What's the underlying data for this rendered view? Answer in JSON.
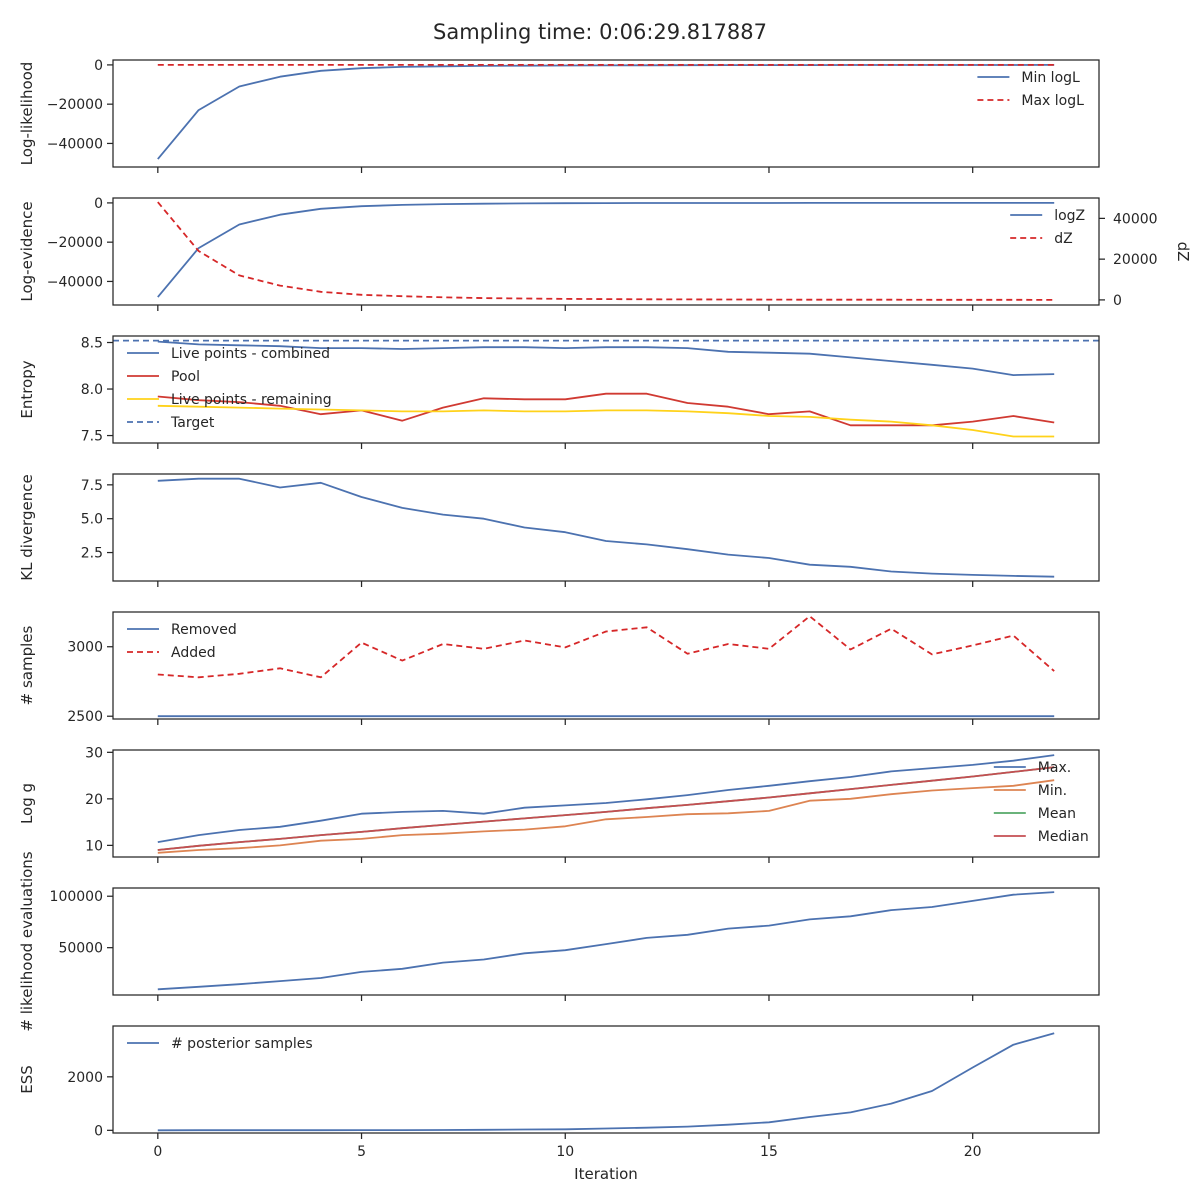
{
  "figure": {
    "title": "Sampling time: 0:06:29.817887"
  },
  "colors": {
    "blue": "#4c72b0",
    "red": "#c44e52",
    "redDash": "#d62728",
    "crimson": "#d03a32",
    "orange": "#dd8452",
    "green": "#55a868",
    "gold": "#ffd21a",
    "axis": "#262626"
  },
  "chart_data": [
    {
      "id": "loglike",
      "type": "line",
      "ylabel": "Log-likelihood",
      "xlabel": "",
      "ylim": [
        -52000,
        2500
      ],
      "yticks": [
        0,
        -20000,
        -40000
      ],
      "ytick_labels": [
        "0",
        "−20000",
        "−40000"
      ],
      "legend": "top-right",
      "series": [
        {
          "name": "Min logL",
          "color": "#4c72b0",
          "dash": false,
          "values": [
            -48000,
            -23000,
            -11000,
            -6000,
            -3000,
            -1700,
            -1000,
            -700,
            -500,
            -400,
            -300,
            -250,
            -200,
            -150,
            -120,
            -100,
            -80,
            -70,
            -60,
            -50,
            -40,
            -30,
            -20
          ]
        },
        {
          "name": "Max logL",
          "color": "#d62728",
          "dash": true,
          "values": [
            0,
            0,
            0,
            0,
            0,
            0,
            0,
            0,
            0,
            0,
            0,
            0,
            0,
            0,
            0,
            0,
            0,
            0,
            0,
            0,
            0,
            0,
            0
          ]
        }
      ]
    },
    {
      "id": "logevidence",
      "type": "line",
      "ylabel": "Log-evidence",
      "xlabel": "",
      "ylim": [
        -52000,
        2500
      ],
      "yticks": [
        0,
        -20000,
        -40000
      ],
      "ytick_labels": [
        "0",
        "−20000",
        "−40000"
      ],
      "y2label": "dZ",
      "y2lim": [
        -2500,
        50000
      ],
      "y2ticks": [
        0,
        20000,
        40000
      ],
      "y2tick_labels": [
        "0",
        "20000",
        "40000"
      ],
      "legend": "top-right",
      "series": [
        {
          "name": "logZ",
          "color": "#4c72b0",
          "dash": false,
          "axis": "left",
          "values": [
            -48000,
            -23000,
            -11000,
            -6000,
            -3000,
            -1700,
            -1000,
            -600,
            -400,
            -250,
            -150,
            -100,
            -70,
            -50,
            -35,
            -25,
            -18,
            -12,
            -8,
            -5,
            -3,
            -2,
            -1
          ]
        },
        {
          "name": "dZ",
          "color": "#d62728",
          "dash": true,
          "axis": "right",
          "values": [
            48000,
            24000,
            12000,
            7000,
            4000,
            2500,
            1800,
            1300,
            900,
            700,
            500,
            400,
            300,
            250,
            200,
            150,
            120,
            100,
            80,
            60,
            40,
            30,
            20
          ]
        }
      ]
    },
    {
      "id": "entropy",
      "type": "line",
      "ylabel": "Entropy",
      "xlabel": "",
      "ylim": [
        7.42,
        8.57
      ],
      "yticks": [
        7.5,
        8.0,
        8.5
      ],
      "ytick_labels": [
        "7.5",
        "8.0",
        "8.5"
      ],
      "legend": "top-left",
      "hline": {
        "name": "Target",
        "value": 8.52,
        "color": "#4c72b0",
        "dash": true
      },
      "series": [
        {
          "name": "Live points - combined",
          "color": "#4c72b0",
          "dash": false,
          "values": [
            8.51,
            8.48,
            8.47,
            8.46,
            8.44,
            8.44,
            8.43,
            8.44,
            8.45,
            8.45,
            8.44,
            8.45,
            8.45,
            8.44,
            8.4,
            8.39,
            8.38,
            8.34,
            8.3,
            8.26,
            8.22,
            8.15,
            8.16
          ]
        },
        {
          "name": "Pool",
          "color": "#d03a32",
          "dash": false,
          "values": [
            7.92,
            7.88,
            7.86,
            7.82,
            7.73,
            7.77,
            7.66,
            7.8,
            7.9,
            7.89,
            7.89,
            7.95,
            7.95,
            7.85,
            7.81,
            7.73,
            7.76,
            7.61,
            7.61,
            7.61,
            7.65,
            7.71,
            7.64
          ]
        },
        {
          "name": "Live points - remaining",
          "color": "#ffd21a",
          "dash": false,
          "values": [
            7.82,
            7.81,
            7.8,
            7.79,
            7.78,
            7.77,
            7.76,
            7.76,
            7.77,
            7.76,
            7.76,
            7.77,
            7.77,
            7.76,
            7.74,
            7.71,
            7.7,
            7.67,
            7.65,
            7.61,
            7.56,
            7.49,
            7.49
          ]
        }
      ]
    },
    {
      "id": "kl",
      "type": "line",
      "ylabel": "KL divergence",
      "xlabel": "",
      "ylim": [
        0.4,
        8.3
      ],
      "yticks": [
        2.5,
        5.0,
        7.5
      ],
      "ytick_labels": [
        "2.5",
        "5.0",
        "7.5"
      ],
      "legend": "none",
      "series": [
        {
          "name": "",
          "color": "#4c72b0",
          "dash": false,
          "values": [
            7.8,
            7.95,
            7.95,
            7.3,
            7.65,
            6.6,
            5.8,
            5.3,
            5.0,
            4.35,
            4.0,
            3.35,
            3.1,
            2.75,
            2.35,
            2.1,
            1.6,
            1.45,
            1.1,
            0.95,
            0.85,
            0.78,
            0.72
          ]
        }
      ]
    },
    {
      "id": "samples",
      "type": "line",
      "ylabel": "# samples",
      "xlabel": "",
      "ylim": [
        2480,
        3250
      ],
      "yticks": [
        2500,
        3000
      ],
      "ytick_labels": [
        "2500",
        "3000"
      ],
      "legend": "top-left",
      "series": [
        {
          "name": "Removed",
          "color": "#4c72b0",
          "dash": false,
          "values": [
            2500,
            2500,
            2500,
            2500,
            2500,
            2500,
            2500,
            2500,
            2500,
            2500,
            2500,
            2500,
            2500,
            2500,
            2500,
            2500,
            2500,
            2500,
            2500,
            2500,
            2500,
            2500,
            2500
          ]
        },
        {
          "name": "Added",
          "color": "#d62728",
          "dash": true,
          "values": [
            2800,
            2780,
            2805,
            2845,
            2780,
            3030,
            2900,
            3020,
            2985,
            3045,
            2995,
            3110,
            3140,
            2950,
            3020,
            2985,
            3220,
            2980,
            3130,
            2945,
            3010,
            3080,
            2825
          ]
        }
      ]
    },
    {
      "id": "logg",
      "type": "line",
      "ylabel": "Log g",
      "xlabel": "",
      "ylim": [
        7.5,
        30.5
      ],
      "yticks": [
        10,
        20,
        30
      ],
      "ytick_labels": [
        "10",
        "20",
        "30"
      ],
      "legend": "top-right",
      "series": [
        {
          "name": "Max.",
          "color": "#4c72b0",
          "dash": false,
          "values": [
            10.7,
            12.2,
            13.3,
            14.0,
            15.3,
            16.8,
            17.2,
            17.4,
            16.8,
            18.1,
            18.6,
            19.1,
            19.9,
            20.8,
            21.9,
            22.8,
            23.8,
            24.7,
            25.9,
            26.6,
            27.3,
            28.2,
            29.4
          ]
        },
        {
          "name": "Min.",
          "color": "#dd8452",
          "dash": false,
          "values": [
            8.4,
            9.0,
            9.4,
            10.0,
            11.0,
            11.4,
            12.2,
            12.5,
            13.0,
            13.4,
            14.1,
            15.6,
            16.1,
            16.7,
            16.9,
            17.4,
            19.6,
            20.0,
            21.0,
            21.8,
            22.3,
            22.8,
            24.0
          ]
        },
        {
          "name": "Mean",
          "color": "#55a868",
          "dash": false,
          "values": [
            9.0,
            9.9,
            10.7,
            11.4,
            12.2,
            12.9,
            13.7,
            14.4,
            15.1,
            15.8,
            16.5,
            17.2,
            18.0,
            18.7,
            19.5,
            20.3,
            21.2,
            22.1,
            23.0,
            23.9,
            24.8,
            25.8,
            26.8
          ]
        },
        {
          "name": "Median",
          "color": "#c44e52",
          "dash": false,
          "values": [
            9.0,
            9.9,
            10.7,
            11.4,
            12.2,
            12.9,
            13.7,
            14.4,
            15.1,
            15.8,
            16.5,
            17.2,
            18.0,
            18.7,
            19.5,
            20.3,
            21.2,
            22.1,
            23.0,
            23.9,
            24.8,
            25.8,
            26.8
          ]
        }
      ]
    },
    {
      "id": "likeevals",
      "type": "line",
      "ylabel": "# likelihood evaluations",
      "xlabel": "",
      "ylim": [
        4000,
        108000
      ],
      "yticks": [
        50000,
        100000
      ],
      "ytick_labels": [
        "50000",
        "100000"
      ],
      "legend": "none",
      "series": [
        {
          "name": "",
          "color": "#4c72b0",
          "dash": false,
          "values": [
            9500,
            12000,
            14500,
            17500,
            20500,
            26500,
            29500,
            35500,
            38500,
            44500,
            47500,
            53500,
            59500,
            62500,
            68500,
            71500,
            77500,
            80500,
            86500,
            89500,
            95500,
            101500,
            104000
          ]
        }
      ]
    },
    {
      "id": "ess",
      "type": "line",
      "ylabel": "ESS",
      "xlabel": "Iteration",
      "ylim": [
        -100,
        3900
      ],
      "yticks": [
        0,
        2000
      ],
      "ytick_labels": [
        "0",
        "2000"
      ],
      "xticks": [
        0,
        5,
        10,
        15,
        20
      ],
      "xtick_labels": [
        "0",
        "5",
        "10",
        "15",
        "20"
      ],
      "legend": "top-left",
      "series": [
        {
          "name": "# posterior samples",
          "color": "#4c72b0",
          "dash": false,
          "values": [
            2,
            3,
            4,
            5,
            6,
            8,
            10,
            13,
            20,
            30,
            40,
            70,
            100,
            140,
            210,
            300,
            500,
            670,
            1000,
            1470,
            2350,
            3200,
            3630
          ]
        }
      ]
    }
  ]
}
